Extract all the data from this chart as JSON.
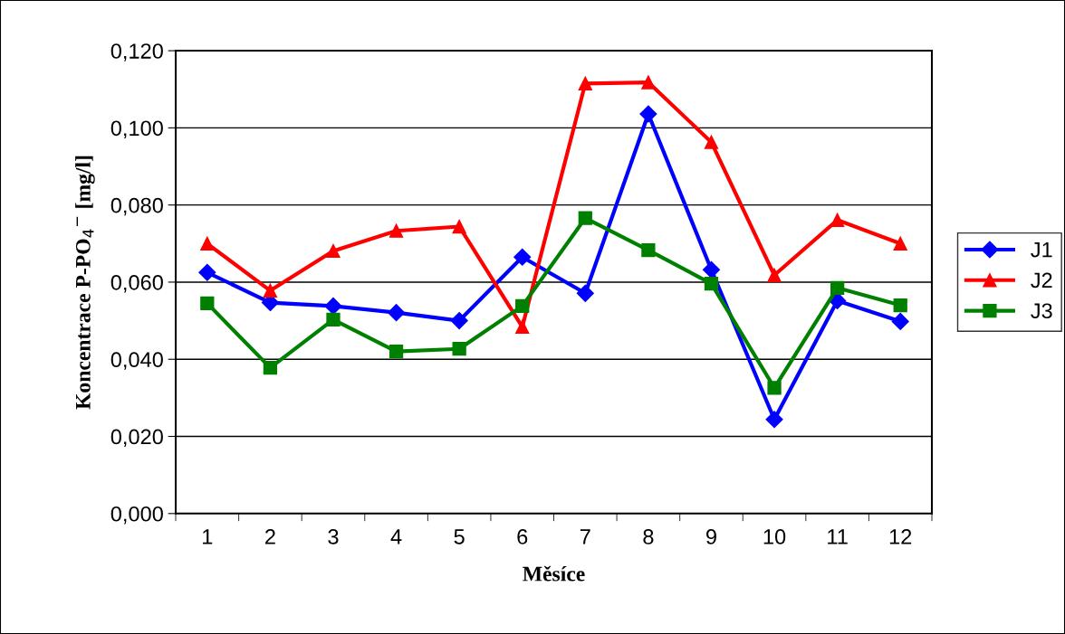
{
  "chart_data": {
    "type": "line",
    "xlabel": "Měsíce",
    "ylabel": "Koncentrace P-PO$_{4}$$^{−}$ [mg/l]",
    "categories": [
      "1",
      "2",
      "3",
      "4",
      "5",
      "6",
      "7",
      "8",
      "9",
      "10",
      "11",
      "12"
    ],
    "series": [
      {
        "name": "J1",
        "color": "#0000ff",
        "marker": "diamond",
        "values": [
          0.0625,
          0.0547,
          0.0538,
          0.0521,
          0.05,
          0.0665,
          0.0571,
          0.1036,
          0.0632,
          0.0244,
          0.0552,
          0.0498
        ]
      },
      {
        "name": "J2",
        "color": "#ff0000",
        "marker": "triangle",
        "values": [
          0.07,
          0.0578,
          0.0681,
          0.0733,
          0.0744,
          0.0484,
          0.1115,
          0.1118,
          0.0963,
          0.0618,
          0.0761,
          0.07
        ]
      },
      {
        "name": "J3",
        "color": "#008000",
        "marker": "square",
        "values": [
          0.0545,
          0.0378,
          0.0503,
          0.042,
          0.0427,
          0.0538,
          0.0766,
          0.0683,
          0.0596,
          0.0326,
          0.0585,
          0.054
        ]
      }
    ],
    "ylim": [
      0,
      0.12
    ],
    "yticks": [
      {
        "value": 0,
        "label": "0,000"
      },
      {
        "value": 0.02,
        "label": "0,020"
      },
      {
        "value": 0.04,
        "label": "0,040"
      },
      {
        "value": 0.06,
        "label": "0,060"
      },
      {
        "value": 0.08,
        "label": "0,080"
      },
      {
        "value": 0.1,
        "label": "0,100"
      },
      {
        "value": 0.12,
        "label": "0,120"
      }
    ],
    "grid": "y",
    "legend": "right",
    "line_style": "solid"
  }
}
